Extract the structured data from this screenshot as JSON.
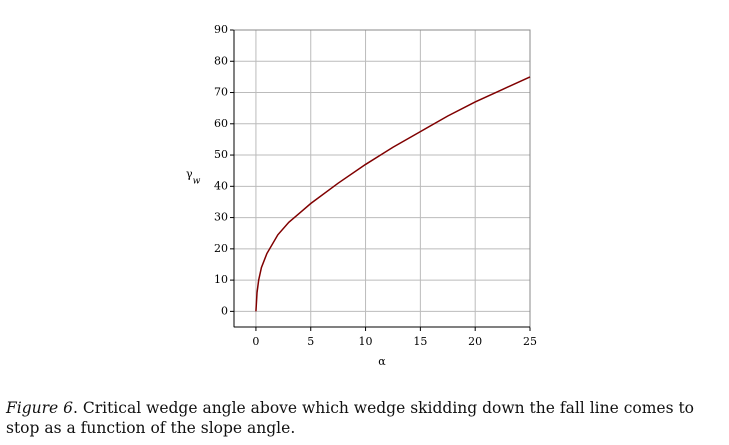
{
  "chart_data": {
    "type": "line",
    "xlabel": "α",
    "ylabel": {
      "symbol": "γ",
      "subscript": "w"
    },
    "x": [
      0,
      0.1,
      0.25,
      0.5,
      1,
      2,
      3,
      4,
      5,
      7.5,
      10,
      12.5,
      15,
      17.5,
      20,
      22.5,
      25
    ],
    "series": [
      {
        "name": "γw",
        "color": "#800000",
        "values": [
          0,
          6,
          10,
          14,
          18.5,
          24.5,
          28.5,
          31.5,
          34.5,
          41,
          47,
          52.5,
          57.5,
          62.5,
          67,
          71,
          75
        ]
      }
    ],
    "xlim": [
      -2,
      25
    ],
    "ylim": [
      -5,
      90
    ],
    "xticks": [
      0,
      5,
      10,
      15,
      20,
      25
    ],
    "yticks": [
      0,
      10,
      20,
      30,
      40,
      50,
      60,
      70,
      80,
      90
    ],
    "grid": true
  },
  "caption": {
    "label": "Figure 6",
    "text": ". Critical wedge angle above which wedge skidding down the fall line comes to stop as a function of the slope angle."
  }
}
